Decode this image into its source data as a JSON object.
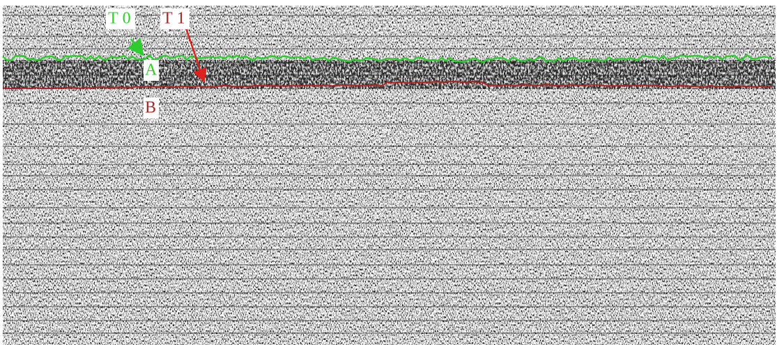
{
  "labels": {
    "t0": "T0",
    "t1": "T1",
    "a": "A",
    "b": "B"
  }
}
